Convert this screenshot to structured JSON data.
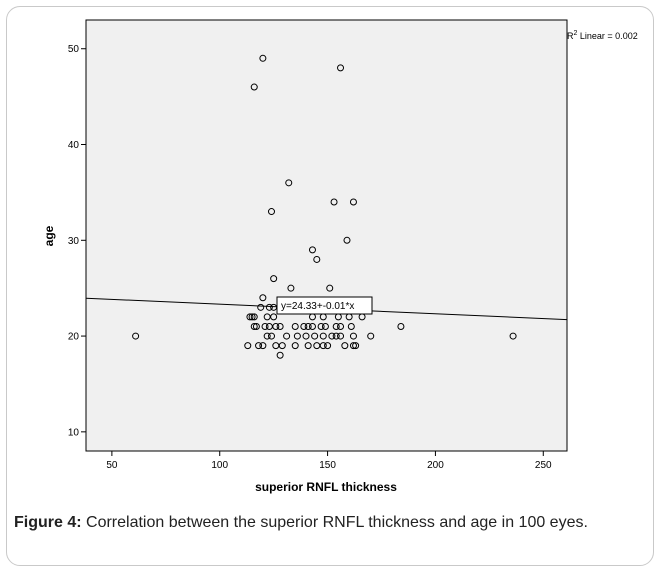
{
  "chart_data": {
    "type": "scatter",
    "xlabel": "superior RNFL thickness",
    "ylabel": "age",
    "xlim": [
      38,
      261
    ],
    "ylim": [
      8,
      53
    ],
    "xticks": [
      50,
      100,
      150,
      200,
      250
    ],
    "yticks": [
      10,
      20,
      30,
      40,
      50
    ],
    "grid": false,
    "points": [
      {
        "x": 120,
        "y": 49
      },
      {
        "x": 156,
        "y": 48
      },
      {
        "x": 116,
        "y": 46
      },
      {
        "x": 132,
        "y": 36
      },
      {
        "x": 153,
        "y": 34
      },
      {
        "x": 162,
        "y": 34
      },
      {
        "x": 124,
        "y": 33
      },
      {
        "x": 159,
        "y": 30
      },
      {
        "x": 143,
        "y": 29
      },
      {
        "x": 145,
        "y": 28
      },
      {
        "x": 125,
        "y": 26
      },
      {
        "x": 133,
        "y": 25
      },
      {
        "x": 151,
        "y": 25
      },
      {
        "x": 120,
        "y": 24
      },
      {
        "x": 119,
        "y": 23
      },
      {
        "x": 123,
        "y": 23
      },
      {
        "x": 125,
        "y": 23
      },
      {
        "x": 114,
        "y": 22
      },
      {
        "x": 115,
        "y": 22
      },
      {
        "x": 116,
        "y": 22
      },
      {
        "x": 122,
        "y": 22
      },
      {
        "x": 125,
        "y": 22
      },
      {
        "x": 143,
        "y": 22
      },
      {
        "x": 148,
        "y": 22
      },
      {
        "x": 155,
        "y": 22
      },
      {
        "x": 160,
        "y": 22
      },
      {
        "x": 166,
        "y": 22
      },
      {
        "x": 116,
        "y": 21
      },
      {
        "x": 117,
        "y": 21
      },
      {
        "x": 121,
        "y": 21
      },
      {
        "x": 123,
        "y": 21
      },
      {
        "x": 126,
        "y": 21
      },
      {
        "x": 128,
        "y": 21
      },
      {
        "x": 135,
        "y": 21
      },
      {
        "x": 139,
        "y": 21
      },
      {
        "x": 141,
        "y": 21
      },
      {
        "x": 143,
        "y": 21
      },
      {
        "x": 147,
        "y": 21
      },
      {
        "x": 149,
        "y": 21
      },
      {
        "x": 154,
        "y": 21
      },
      {
        "x": 156,
        "y": 21
      },
      {
        "x": 161,
        "y": 21
      },
      {
        "x": 184,
        "y": 21
      },
      {
        "x": 61,
        "y": 20
      },
      {
        "x": 122,
        "y": 20
      },
      {
        "x": 124,
        "y": 20
      },
      {
        "x": 131,
        "y": 20
      },
      {
        "x": 136,
        "y": 20
      },
      {
        "x": 140,
        "y": 20
      },
      {
        "x": 144,
        "y": 20
      },
      {
        "x": 148,
        "y": 20
      },
      {
        "x": 152,
        "y": 20
      },
      {
        "x": 154,
        "y": 20
      },
      {
        "x": 156,
        "y": 20
      },
      {
        "x": 162,
        "y": 20
      },
      {
        "x": 170,
        "y": 20
      },
      {
        "x": 236,
        "y": 20
      },
      {
        "x": 113,
        "y": 19
      },
      {
        "x": 118,
        "y": 19
      },
      {
        "x": 120,
        "y": 19
      },
      {
        "x": 126,
        "y": 19
      },
      {
        "x": 129,
        "y": 19
      },
      {
        "x": 135,
        "y": 19
      },
      {
        "x": 141,
        "y": 19
      },
      {
        "x": 145,
        "y": 19
      },
      {
        "x": 148,
        "y": 19
      },
      {
        "x": 150,
        "y": 19
      },
      {
        "x": 158,
        "y": 19
      },
      {
        "x": 162,
        "y": 19
      },
      {
        "x": 163,
        "y": 19
      },
      {
        "x": 128,
        "y": 18
      }
    ],
    "fit_line": {
      "intercept": 24.33,
      "slope": -0.01,
      "label": "y=24.33+-0.01*x"
    },
    "r2": {
      "prefix": "R",
      "sup": "2",
      "text": " Linear = 0.002",
      "value": 0.002
    }
  },
  "caption": {
    "label": "Figure 4:",
    "text": " Correlation between the superior RNFL thickness and age in 100 eyes."
  },
  "colors": {
    "plot_background": "#f0f0f0",
    "axis": "#000000",
    "marker_stroke": "#000000",
    "fit_line": "#000000"
  }
}
